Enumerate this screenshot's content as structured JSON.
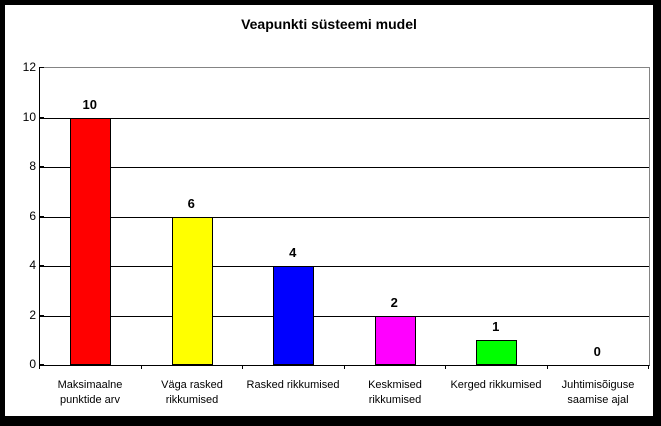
{
  "window": {
    "title": "Veapunkti süsteemi mudel"
  },
  "chart_data": {
    "type": "bar",
    "title": "Veapunkti süsteemi mudel",
    "categories": [
      "Maksimaalne punktide arv",
      "Väga rasked rikkumised",
      "Rasked rikkumised",
      "Keskmised rikkumised",
      "Kerged rikkumised",
      "Juhtimisõiguse saamise ajal"
    ],
    "values": [
      10,
      6,
      4,
      2,
      1,
      0
    ],
    "data_labels": [
      "10",
      "6",
      "4",
      "2",
      "1",
      "0"
    ],
    "bar_colors": [
      "#ff0000",
      "#ffff00",
      "#0000ff",
      "#ff00ff",
      "#00ff00",
      null
    ],
    "bar_outline_color": "#000000",
    "xlabel": "",
    "ylabel": "",
    "ylim": [
      0,
      12
    ],
    "yticks": [
      0,
      2,
      4,
      6,
      8,
      10,
      12
    ],
    "grid": "horizontal-black",
    "plot_border_color": "#848484",
    "legend": "none",
    "frame_color": "#000000",
    "background_color": "#ffffff"
  }
}
